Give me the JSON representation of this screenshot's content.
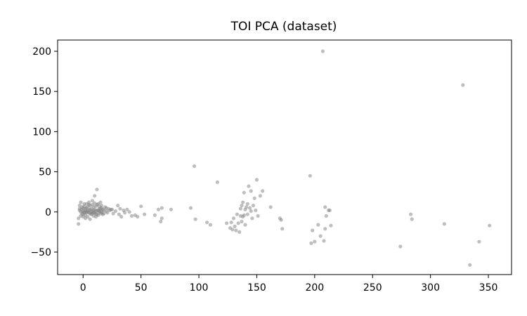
{
  "chart_data": {
    "type": "scatter",
    "title": "TOI PCA (dataset)",
    "xlabel": "",
    "ylabel": "",
    "xlim": [
      -22,
      370
    ],
    "ylim": [
      -78,
      214
    ],
    "xticks": [
      0,
      50,
      100,
      150,
      200,
      250,
      300,
      350
    ],
    "yticks": [
      -50,
      0,
      50,
      100,
      150,
      200
    ],
    "grid": false,
    "point_color": "#808080",
    "point_opacity": 0.5,
    "series": [
      {
        "points": [
          [
            -4,
            -15
          ],
          [
            -4,
            -8
          ],
          [
            -3,
            2
          ],
          [
            -3,
            8
          ],
          [
            -2,
            12
          ],
          [
            -2,
            -5
          ],
          [
            -1,
            3
          ],
          [
            -1,
            -2
          ],
          [
            0,
            5
          ],
          [
            0,
            -3
          ],
          [
            1,
            7
          ],
          [
            1,
            0
          ],
          [
            2,
            -4
          ],
          [
            2,
            4
          ],
          [
            3,
            10
          ],
          [
            3,
            -1
          ],
          [
            4,
            6
          ],
          [
            4,
            -6
          ],
          [
            5,
            2
          ],
          [
            5,
            12
          ],
          [
            6,
            -2
          ],
          [
            6,
            8
          ],
          [
            7,
            4
          ],
          [
            7,
            -3
          ],
          [
            8,
            14
          ],
          [
            8,
            1
          ],
          [
            9,
            6
          ],
          [
            9,
            -5
          ],
          [
            10,
            20
          ],
          [
            10,
            3
          ],
          [
            11,
            -2
          ],
          [
            11,
            7
          ],
          [
            12,
            28
          ],
          [
            12,
            2
          ],
          [
            13,
            10
          ],
          [
            13,
            -4
          ],
          [
            14,
            4
          ],
          [
            14,
            0
          ],
          [
            15,
            12
          ],
          [
            15,
            -2
          ],
          [
            16,
            5
          ],
          [
            16,
            1
          ],
          [
            17,
            3
          ],
          [
            17,
            -3
          ],
          [
            18,
            2
          ],
          [
            19,
            6
          ],
          [
            20,
            1
          ],
          [
            21,
            -1
          ],
          [
            22,
            4
          ],
          [
            23,
            2
          ],
          [
            25,
            3
          ],
          [
            26,
            -2
          ],
          [
            28,
            1
          ],
          [
            30,
            8
          ],
          [
            31,
            -3
          ],
          [
            32,
            4
          ],
          [
            33,
            -6
          ],
          [
            35,
            2
          ],
          [
            36,
            -1
          ],
          [
            38,
            3
          ],
          [
            40,
            0
          ],
          [
            42,
            -5
          ],
          [
            45,
            -4
          ],
          [
            47,
            -6
          ],
          [
            50,
            7
          ],
          [
            53,
            -3
          ],
          [
            62,
            -4
          ],
          [
            65,
            3
          ],
          [
            67,
            -12
          ],
          [
            68,
            5
          ],
          [
            68,
            -8
          ],
          [
            76,
            3
          ],
          [
            93,
            5
          ],
          [
            96,
            57
          ],
          [
            97,
            -9
          ],
          [
            107,
            -13
          ],
          [
            110,
            -16
          ],
          [
            116,
            37
          ],
          [
            124,
            -14
          ],
          [
            127,
            -20
          ],
          [
            128,
            -13
          ],
          [
            129,
            -22
          ],
          [
            130,
            -8
          ],
          [
            131,
            -18
          ],
          [
            132,
            -23
          ],
          [
            133,
            -3
          ],
          [
            134,
            -14
          ],
          [
            135,
            -25
          ],
          [
            136,
            -5
          ],
          [
            136,
            4
          ],
          [
            137,
            -12
          ],
          [
            137,
            8
          ],
          [
            138,
            12
          ],
          [
            138,
            -6
          ],
          [
            139,
            -4
          ],
          [
            139,
            24
          ],
          [
            140,
            3
          ],
          [
            140,
            -16
          ],
          [
            141,
            6
          ],
          [
            142,
            10
          ],
          [
            142,
            -3
          ],
          [
            143,
            32
          ],
          [
            144,
            5
          ],
          [
            145,
            1
          ],
          [
            145,
            26
          ],
          [
            146,
            -8
          ],
          [
            147,
            8
          ],
          [
            148,
            17
          ],
          [
            149,
            2
          ],
          [
            150,
            40
          ],
          [
            151,
            -5
          ],
          [
            153,
            20
          ],
          [
            155,
            26
          ],
          [
            162,
            6
          ],
          [
            170,
            -8
          ],
          [
            171,
            -10
          ],
          [
            172,
            -21
          ],
          [
            196,
            45
          ],
          [
            197,
            -39
          ],
          [
            198,
            -23
          ],
          [
            200,
            -37
          ],
          [
            203,
            -16
          ],
          [
            205,
            -30
          ],
          [
            207,
            200
          ],
          [
            208,
            -36
          ],
          [
            209,
            -21
          ],
          [
            209,
            6
          ],
          [
            210,
            -5
          ],
          [
            212,
            2
          ],
          [
            213,
            2
          ],
          [
            214,
            -17
          ],
          [
            274,
            -43
          ],
          [
            283,
            -3
          ],
          [
            284,
            -9
          ],
          [
            312,
            -15
          ],
          [
            328,
            158
          ],
          [
            334,
            -66
          ],
          [
            342,
            -37
          ],
          [
            351,
            -17
          ],
          [
            0,
            1
          ],
          [
            1,
            -1
          ],
          [
            2,
            2
          ],
          [
            3,
            0
          ],
          [
            4,
            1
          ],
          [
            5,
            -1
          ],
          [
            6,
            3
          ],
          [
            7,
            0
          ],
          [
            8,
            -2
          ],
          [
            9,
            2
          ],
          [
            10,
            -1
          ],
          [
            11,
            1
          ],
          [
            12,
            -3
          ],
          [
            13,
            2
          ],
          [
            14,
            1
          ],
          [
            15,
            4
          ],
          [
            16,
            -1
          ],
          [
            -3,
            4
          ],
          [
            -2,
            0
          ],
          [
            -1,
            6
          ],
          [
            0,
            -6
          ],
          [
            1,
            10
          ],
          [
            2,
            -8
          ],
          [
            3,
            5
          ],
          [
            5,
            9
          ],
          [
            6,
            -9
          ],
          [
            8,
            9
          ],
          [
            9,
            -1
          ],
          [
            10,
            11
          ],
          [
            11,
            -6
          ],
          [
            12,
            9
          ],
          [
            14,
            7
          ],
          [
            16,
            8
          ],
          [
            18,
            -2
          ],
          [
            20,
            5
          ],
          [
            24,
            3
          ]
        ]
      }
    ]
  }
}
